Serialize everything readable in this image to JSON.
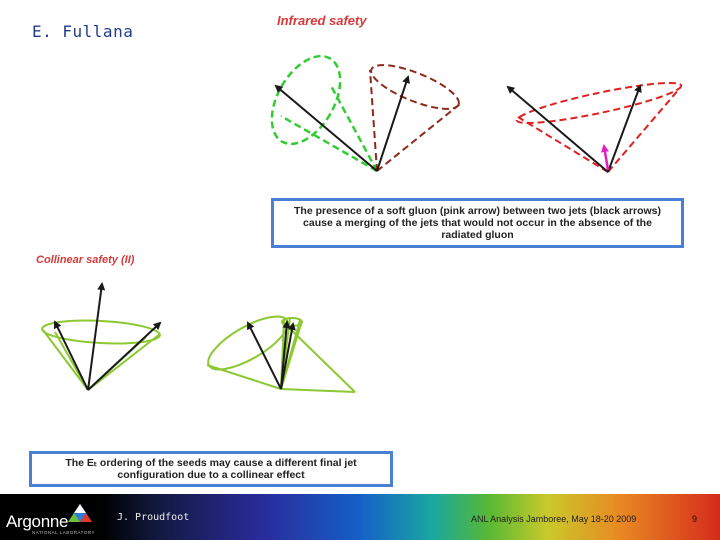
{
  "header": {
    "author": "E. Fullana"
  },
  "infrared": {
    "title": "Infrared safety",
    "caption": "The presence of a soft gluon (pink arrow) between two jets (black arrows) cause a merging of the jets that would not occur in the absence of the radiated gluon"
  },
  "collinear": {
    "title": "Collinear safety (II)",
    "caption": "The Eₜ ordering of the seeds may cause a different final jet configuration due to a collinear effect"
  },
  "footer": {
    "logo": "Argonne",
    "logo_sub": "NATIONAL LABORATORY",
    "presenter": "J. Proudfoot",
    "event": "ANL Analysis Jamboree, May 18-20 2009",
    "page": "9"
  },
  "colors": {
    "jet_arrow": "#1a1a1a",
    "green_cone": "#33cc33",
    "darkred_cone": "#8b2a1a",
    "red_cone": "#e02020",
    "gluon_arrow": "#e020c0",
    "collinear_cone": "#8cc832",
    "caption_border": "#4a7fd6",
    "title_red": "#d83a3a"
  }
}
